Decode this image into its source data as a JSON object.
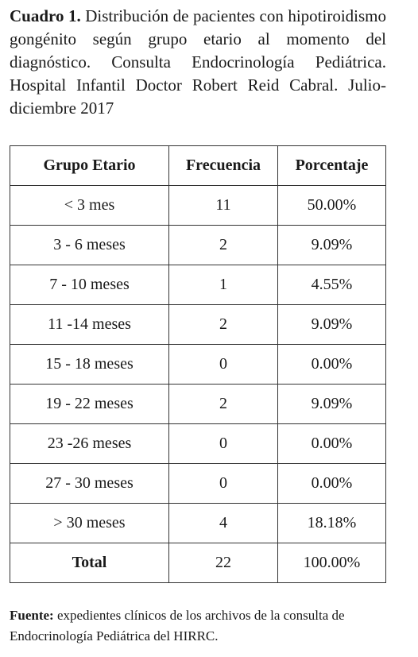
{
  "caption": {
    "label": "Cuadro 1.",
    "text": "Distribución de pacientes con hipotiroidismo gongénito según grupo etario al momento del diagnóstico. Consulta Endocrinología Pediátrica. Hospital Infantil Doctor Robert Reid Cabral. Julio-diciembre 2017"
  },
  "table": {
    "header": [
      "Grupo Etario",
      "Frecuencia",
      "Porcentaje"
    ],
    "rows": [
      [
        "< 3 mes",
        "11",
        "50.00%"
      ],
      [
        "3 - 6 meses",
        "2",
        "9.09%"
      ],
      [
        "7 - 10 meses",
        "1",
        "4.55%"
      ],
      [
        "11 -14 meses",
        "2",
        "9.09%"
      ],
      [
        "15 - 18 meses",
        "0",
        "0.00%"
      ],
      [
        "19 - 22 meses",
        "2",
        "9.09%"
      ],
      [
        "23 -26 meses",
        "0",
        "0.00%"
      ],
      [
        "27 - 30 meses",
        "0",
        "0.00%"
      ],
      [
        "> 30 meses",
        "4",
        "18.18%"
      ]
    ],
    "total": [
      "Total",
      "22",
      "100.00%"
    ]
  },
  "footer": {
    "label": "Fuente:",
    "text": "expedientes clínicos de los archivos de la consulta de Endocrinología Pediátrica del HIRRC."
  }
}
